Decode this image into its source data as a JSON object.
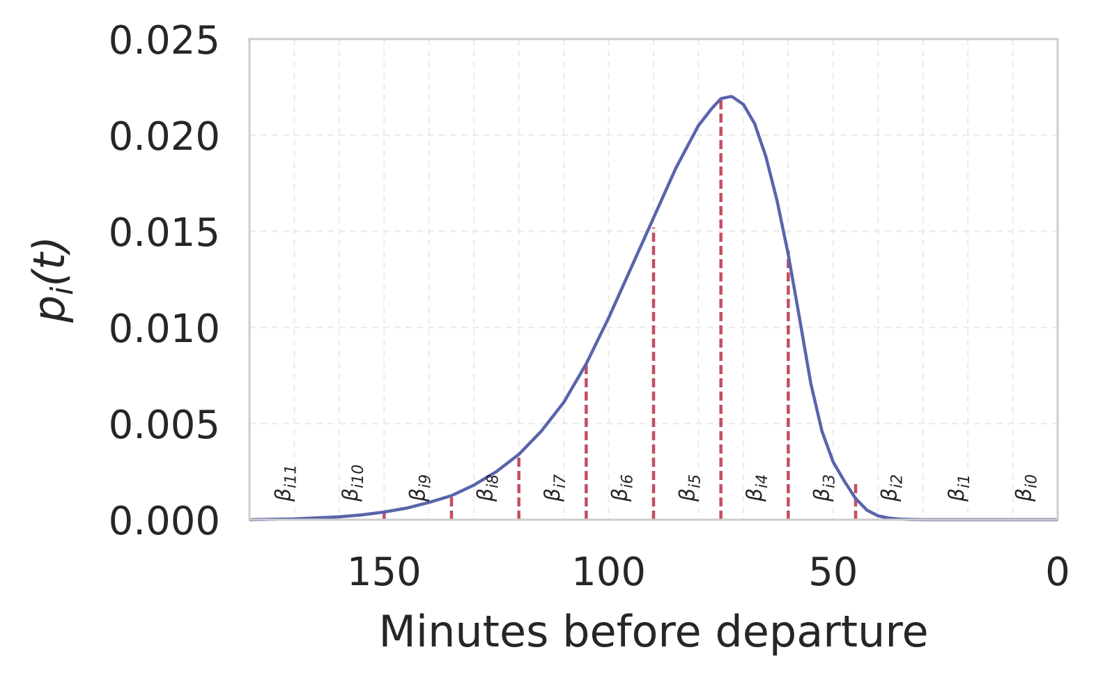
{
  "chart_data": {
    "type": "line",
    "xlabel": "Minutes before departure",
    "ylabel": "p_i(t)",
    "ylabel_parts": {
      "main": "p",
      "sub": "i",
      "rest": "(t)"
    },
    "xlim": [
      180,
      0
    ],
    "ylim": [
      0,
      0.025
    ],
    "x_scale": "linear, reversed",
    "x_ticks": [
      150,
      100,
      50,
      0
    ],
    "x_tick_labels": [
      "150",
      "100",
      "50",
      "0"
    ],
    "y_ticks": [
      0,
      0.005,
      0.01,
      0.015,
      0.02,
      0.025
    ],
    "y_tick_labels": [
      "0.000",
      "0.005",
      "0.010",
      "0.015",
      "0.020",
      "0.025"
    ],
    "x_grid_minor": [
      170,
      160,
      150,
      140,
      130,
      120,
      110,
      100,
      90,
      80,
      70,
      60,
      50,
      40,
      30,
      20,
      10
    ],
    "grid": true,
    "series": [
      {
        "color": "#5a64ab",
        "x": [
          180,
          170,
          160,
          155,
          150,
          145,
          140,
          135,
          130,
          125,
          120,
          115,
          110,
          105,
          100,
          95,
          90,
          85,
          80,
          77,
          75,
          73,
          72.5,
          70,
          67.5,
          65,
          62.5,
          60,
          57.5,
          55,
          52.5,
          50,
          47.5,
          45,
          42.5,
          40,
          37.5,
          35,
          32.5,
          30,
          25,
          20,
          10,
          0
        ],
        "y": [
          0.0,
          4e-05,
          0.00015,
          0.00025,
          0.0004,
          0.0006,
          0.0009,
          0.00125,
          0.0018,
          0.0025,
          0.0034,
          0.0046,
          0.0061,
          0.0081,
          0.0105,
          0.0131,
          0.0157,
          0.0183,
          0.0205,
          0.0214,
          0.0219,
          0.022,
          0.022,
          0.0216,
          0.0206,
          0.0189,
          0.0166,
          0.0138,
          0.0105,
          0.0071,
          0.0046,
          0.003,
          0.002,
          0.0011,
          0.0005,
          0.0002,
          8e-05,
          3e-05,
          1e-05,
          0.0,
          0.0,
          0.0,
          0.0,
          0.0
        ]
      }
    ],
    "vlines": {
      "color": "#c44e61",
      "style": "dashed",
      "x": [
        150,
        135,
        120,
        105,
        90,
        75,
        60,
        45
      ],
      "y": [
        0.0004,
        0.00125,
        0.0033,
        0.0081,
        0.0152,
        0.0219,
        0.014,
        0.0019
      ]
    },
    "annotations": [
      {
        "base": "β",
        "sub": "i11",
        "x": 172.5
      },
      {
        "base": "β",
        "sub": "i10",
        "x": 157.5
      },
      {
        "base": "β",
        "sub": "i9",
        "x": 142.5
      },
      {
        "base": "β",
        "sub": "i8",
        "x": 127.5
      },
      {
        "base": "β",
        "sub": "i7",
        "x": 112.5
      },
      {
        "base": "β",
        "sub": "i6",
        "x": 97.5
      },
      {
        "base": "β",
        "sub": "i5",
        "x": 82.5
      },
      {
        "base": "β",
        "sub": "i4",
        "x": 67.5
      },
      {
        "base": "β",
        "sub": "i3",
        "x": 52.5
      },
      {
        "base": "β",
        "sub": "i2",
        "x": 37.5
      },
      {
        "base": "β",
        "sub": "i1",
        "x": 22.5
      },
      {
        "base": "β",
        "sub": "i0",
        "x": 7.5
      }
    ]
  }
}
